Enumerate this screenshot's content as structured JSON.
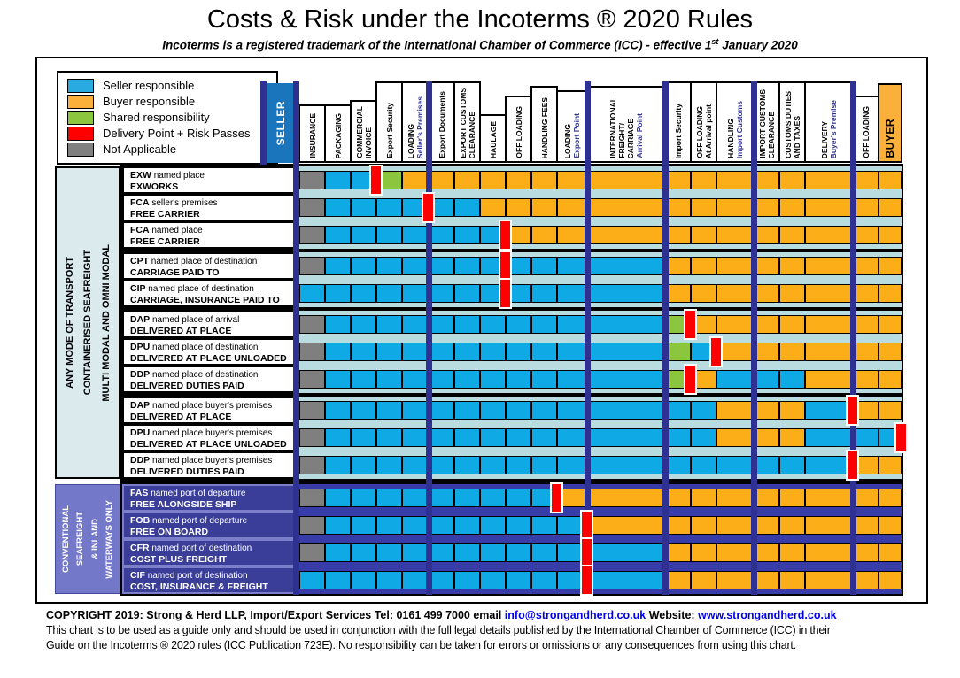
{
  "ui": {
    "title": "Costs & Risk under the Incoterms ® 2020 Rules",
    "subtitle": {
      "text": "Incoterms is a registered trademark of the International Chamber of Commerce (ICC) - effective 1",
      "sup": "st",
      "tail": " January 2020"
    },
    "seller_header": "SELLER",
    "buyer_header": "BUYER",
    "sidebar_top": [
      "ANY MODE OF TRANSPORT",
      "CONTAINERISED SEAFREIGHT",
      "MULTI MODAL AND OMNI MODAL"
    ],
    "sidebar_sea": [
      "CONVENTIONAL",
      "SEAFREIGHT",
      "& INLAND",
      "WATERWAYS ONLY"
    ],
    "footer": {
      "line1": "COPYRIGHT 2019: Strong & Herd LLP, Import/Export Services  Tel: 0161 499 7000   email ",
      "email": "info@strongandherd.co.uk",
      "website_label": " Website: ",
      "website": "www.strongandherd.co.uk",
      "line2": "This chart is to be used as a guide only and should be used in conjunction with the full legal details published by the International Chamber of Commerce (ICC) in their",
      "line3": "Guide on the Incoterms ® 2020 rules (ICC Publication 723E).  No responsibility can be taken for errors or omissions or any consequences from using this chart."
    }
  },
  "chart_data": {
    "type": "heatmap",
    "title": "Costs & Risk under the Incoterms ® 2020 Rules",
    "subtitle": "Incoterms is a registered trademark of the International Chamber of Commerce (ICC) - effective 1st January 2020",
    "legend": [
      {
        "key": "S",
        "label": "Seller responsible",
        "color": "#29ABE2"
      },
      {
        "key": "B",
        "label": "Buyer responsible",
        "color": "#FBB03B"
      },
      {
        "key": "G",
        "label": "Shared responsibility",
        "color": "#8CC63F"
      },
      {
        "key": "R",
        "label": "Delivery Point + Risk Passes",
        "color": "#FF0000"
      },
      {
        "key": "N",
        "label": "Not Applicable",
        "color": "#808080"
      }
    ],
    "cell_colors": {
      "S": "#0FA9E6",
      "B": "#FBAE17",
      "G": "#8CC63F",
      "N": "#7F7F7F",
      "R": "#FF0000"
    },
    "accent_color": "#2E3192",
    "seller_header_color": "#1B75BC",
    "buyer_header_color": "#FBB03B",
    "columns": [
      {
        "label_lines": [
          "INSURANCE"
        ]
      },
      {
        "label_lines": [
          "PACKAGING"
        ]
      },
      {
        "label_lines": [
          "COMMERCIAL",
          "INVOICE"
        ]
      },
      {
        "label_lines": [
          "Export Security"
        ]
      },
      {
        "label_lines": [
          "LOADING"
        ],
        "accent_lines": [
          "Seller's Premises"
        ],
        "divider_after": true
      },
      {
        "label_lines": [
          "Export Documents"
        ]
      },
      {
        "label_lines": [
          "EXPORT CUSTOMS",
          "CLEARANCE"
        ]
      },
      {
        "label_lines": [
          "HAULAGE"
        ]
      },
      {
        "label_lines": [
          "OFF LOADING"
        ]
      },
      {
        "label_lines": [
          "HANDLING FEES"
        ]
      },
      {
        "label_lines": [
          "LOADING"
        ],
        "accent_lines": [
          "Export Point"
        ],
        "divider_after": true
      },
      {
        "label_lines": [
          "INTERNATIONAL",
          "FREIGHT/",
          "CARRIAGE"
        ],
        "accent_lines": [
          "Arrival Point"
        ],
        "divider_after": true
      },
      {
        "label_lines": [
          "Import Security"
        ]
      },
      {
        "label_lines": [
          "OFF LOADING",
          "At Arrival point"
        ]
      },
      {
        "label_lines": [
          "HANDLING"
        ],
        "accent_lines": [
          "Import Customs"
        ],
        "divider_after": true
      },
      {
        "label_lines": [
          "IMPORT CUSTOMS",
          "CLEARANCE"
        ]
      },
      {
        "label_lines": [
          "CUSTOMS DUTIES",
          "AND TAXES"
        ]
      },
      {
        "label_lines": [
          "DELIVERY"
        ],
        "accent_lines": [
          "Buyer's Premise"
        ],
        "divider_after": true
      },
      {
        "label_lines": [
          "OFF LOADING"
        ]
      },
      {
        "label_lines": [
          "BUYER"
        ],
        "role": "buyer"
      }
    ],
    "rows": [
      {
        "code": "EXW",
        "qualifier": "named place",
        "name": "EXWORKS",
        "group": 1,
        "section": "multimodal",
        "cells": [
          "N",
          "S",
          "S",
          "G",
          "B",
          "B",
          "B",
          "B",
          "B",
          "B",
          "B",
          "B",
          "B",
          "B",
          "B",
          "B",
          "B",
          "B",
          "B",
          "B"
        ],
        "risk_after_col": 3
      },
      {
        "code": "FCA",
        "qualifier": "seller's premises",
        "name": "FREE CARRIER",
        "group": 1,
        "section": "multimodal",
        "cells": [
          "N",
          "S",
          "S",
          "S",
          "S",
          "S",
          "S",
          "B",
          "B",
          "B",
          "B",
          "B",
          "B",
          "B",
          "B",
          "B",
          "B",
          "B",
          "B",
          "B"
        ],
        "risk_after_col": 5
      },
      {
        "code": "FCA",
        "qualifier": "named place",
        "name": "FREE CARRIER",
        "group": 1,
        "section": "multimodal",
        "cells": [
          "N",
          "S",
          "S",
          "S",
          "S",
          "S",
          "S",
          "S",
          "B",
          "B",
          "B",
          "B",
          "B",
          "B",
          "B",
          "B",
          "B",
          "B",
          "B",
          "B"
        ],
        "risk_after_col": 8
      },
      {
        "code": "CPT",
        "qualifier": "named place of destination",
        "name": "CARRIAGE PAID TO",
        "group": 2,
        "section": "multimodal",
        "cells": [
          "N",
          "S",
          "S",
          "S",
          "S",
          "S",
          "S",
          "S",
          "S",
          "S",
          "S",
          "S",
          "B",
          "B",
          "B",
          "B",
          "B",
          "B",
          "B",
          "B"
        ],
        "risk_after_col": 8
      },
      {
        "code": "CIP",
        "qualifier": "named place of destination",
        "name": "CARRIAGE, INSURANCE PAID TO",
        "group": 2,
        "section": "multimodal",
        "cells": [
          "S",
          "S",
          "S",
          "S",
          "S",
          "S",
          "S",
          "S",
          "S",
          "S",
          "S",
          "S",
          "B",
          "B",
          "B",
          "B",
          "B",
          "B",
          "B",
          "B"
        ],
        "risk_after_col": 8
      },
      {
        "code": "DAP",
        "qualifier": "named place of arrival",
        "name": "DELIVERED AT PLACE",
        "group": 3,
        "section": "multimodal",
        "cells": [
          "N",
          "S",
          "S",
          "S",
          "S",
          "S",
          "S",
          "S",
          "S",
          "S",
          "S",
          "S",
          "G",
          "B",
          "B",
          "B",
          "B",
          "B",
          "B",
          "B"
        ],
        "risk_after_col": 13
      },
      {
        "code": "DPU",
        "qualifier": "named place of destination",
        "name": "DELIVERED AT PLACE UNLOADED",
        "group": 3,
        "section": "multimodal",
        "cells": [
          "N",
          "S",
          "S",
          "S",
          "S",
          "S",
          "S",
          "S",
          "S",
          "S",
          "S",
          "S",
          "G",
          "S",
          "B",
          "B",
          "B",
          "B",
          "B",
          "B"
        ],
        "risk_after_col": 14
      },
      {
        "code": "DDP",
        "qualifier": "named place of destination",
        "name": "DELIVERED DUTIES PAID",
        "group": 3,
        "section": "multimodal",
        "cells": [
          "N",
          "S",
          "S",
          "S",
          "S",
          "S",
          "S",
          "S",
          "S",
          "S",
          "S",
          "S",
          "G",
          "B",
          "S",
          "S",
          "S",
          "B",
          "B",
          "B"
        ],
        "risk_after_col": 13
      },
      {
        "code": "DAP",
        "qualifier": "named place buyer's premises",
        "name": "DELIVERED AT PLACE",
        "group": 4,
        "section": "multimodal",
        "cells": [
          "N",
          "S",
          "S",
          "S",
          "S",
          "S",
          "S",
          "S",
          "S",
          "S",
          "S",
          "S",
          "S",
          "S",
          "B",
          "B",
          "B",
          "S",
          "B",
          "B"
        ],
        "risk_after_col": 18
      },
      {
        "code": "DPU",
        "qualifier": "named place buyer's premises",
        "name": "DELIVERED AT PLACE UNLOADED",
        "group": 4,
        "section": "multimodal",
        "cells": [
          "N",
          "S",
          "S",
          "S",
          "S",
          "S",
          "S",
          "S",
          "S",
          "S",
          "S",
          "S",
          "S",
          "S",
          "B",
          "B",
          "B",
          "S",
          "S",
          "S"
        ],
        "risk_after_col": 20
      },
      {
        "code": "DDP",
        "qualifier": "named place buyer's premises",
        "name": "DELIVERED DUTIES PAID",
        "group": 4,
        "section": "multimodal",
        "cells": [
          "N",
          "S",
          "S",
          "S",
          "S",
          "S",
          "S",
          "S",
          "S",
          "S",
          "S",
          "S",
          "S",
          "S",
          "S",
          "S",
          "S",
          "S",
          "B",
          "B"
        ],
        "risk_after_col": 18
      },
      {
        "code": "FAS",
        "qualifier": "named port of departure",
        "name": "FREE ALONGSIDE SHIP",
        "group": 5,
        "section": "sea",
        "cells": [
          "N",
          "S",
          "S",
          "S",
          "S",
          "S",
          "S",
          "S",
          "S",
          "S",
          "B",
          "B",
          "B",
          "B",
          "B",
          "B",
          "B",
          "B",
          "B",
          "B"
        ],
        "risk_after_col": 10
      },
      {
        "code": "FOB",
        "qualifier": "named port of departure",
        "name": "FREE ON BOARD",
        "group": 5,
        "section": "sea",
        "cells": [
          "N",
          "S",
          "S",
          "S",
          "S",
          "S",
          "S",
          "S",
          "S",
          "S",
          "S",
          "B",
          "B",
          "B",
          "B",
          "B",
          "B",
          "B",
          "B",
          "B"
        ],
        "risk_after_col": 11
      },
      {
        "code": "CFR",
        "qualifier": "named port of destination",
        "name": "COST PLUS FREIGHT",
        "group": 5,
        "section": "sea",
        "cells": [
          "N",
          "S",
          "S",
          "S",
          "S",
          "S",
          "S",
          "S",
          "S",
          "S",
          "S",
          "S",
          "B",
          "B",
          "B",
          "B",
          "B",
          "B",
          "B",
          "B"
        ],
        "risk_after_col": 11
      },
      {
        "code": "CIF",
        "qualifier": "named port of destination",
        "name": "COST, INSURANCE & FREIGHT",
        "group": 5,
        "section": "sea",
        "cells": [
          "S",
          "S",
          "S",
          "S",
          "S",
          "S",
          "S",
          "S",
          "S",
          "S",
          "S",
          "S",
          "B",
          "B",
          "B",
          "B",
          "B",
          "B",
          "B",
          "B"
        ],
        "risk_after_col": 11
      }
    ]
  }
}
